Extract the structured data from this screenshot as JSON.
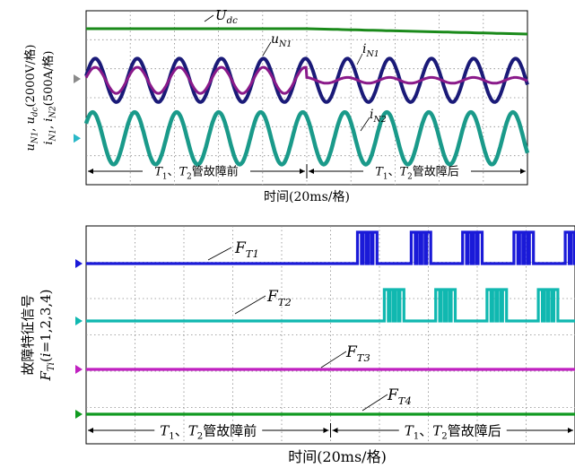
{
  "chart_data": [
    {
      "type": "line",
      "ylabel_parts": [
        "u",
        "N1",
        ", u",
        "dc",
        "(2000V/格)",
        "i",
        "N1",
        ", i",
        "N2",
        "(500A/格)"
      ],
      "xlabel": "时间(20ms/格)",
      "x_divisions": 10,
      "y_divisions": 6,
      "grid": true,
      "phase_split_division": 5,
      "annotations": [
        {
          "main": "U",
          "sub": "dc"
        },
        {
          "main": "u",
          "sub": "N1"
        },
        {
          "main": "i",
          "sub": "N1"
        },
        {
          "main": "i",
          "sub": "N2"
        }
      ],
      "phases": [
        {
          "pre": "T",
          "pre_sub": "1",
          "mid": "、T",
          "mid_sub": "2",
          "post": "管故障前"
        },
        {
          "pre": "T",
          "pre_sub": "1",
          "mid": "、T",
          "mid_sub": "2",
          "post": "管故障后"
        }
      ],
      "colors": {
        "udc": "#1a8a1a",
        "uN1": "#1a1a78",
        "iN1": "#8a1a8a",
        "iN2": "#1a9a8a",
        "marker1": "#8a8a8a",
        "marker2": "#2ab8c8"
      },
      "series": [
        {
          "key": "udc",
          "values_before": [
            1.5,
            1.5
          ],
          "values_after": [
            1.5,
            1.2
          ]
        },
        {
          "key": "uN1",
          "cycles": 10.5,
          "amplitude_div": 0.75,
          "center_div": 2.4
        },
        {
          "key": "iN1",
          "cycles": 10.5,
          "amplitude_div_before": 0.45,
          "amplitude_div_after": 0.1,
          "center_div": 2.4
        },
        {
          "key": "iN2",
          "cycles": 10.5,
          "amplitude_div": 0.9,
          "center_div": 4.4
        }
      ]
    },
    {
      "type": "line",
      "ylabel": "故障特征信号",
      "ylabel_parts": [
        "F",
        "Ti",
        "(i=1,2,3,4)"
      ],
      "xlabel": "时间(20ms/格)",
      "x_divisions": 10,
      "y_divisions": 6,
      "grid": true,
      "phase_split_division": 5,
      "annotations": [
        {
          "main": "F",
          "sub": "T1"
        },
        {
          "main": "F",
          "sub": "T2"
        },
        {
          "main": "F",
          "sub": "T3"
        },
        {
          "main": "F",
          "sub": "T4"
        }
      ],
      "phases": [
        {
          "pre": "T",
          "pre_sub": "1",
          "mid": "、T",
          "mid_sub": "2",
          "post": "管故障前"
        },
        {
          "pre": "T",
          "pre_sub": "1",
          "mid": "、T",
          "mid_sub": "2",
          "post": "管故障后"
        }
      ],
      "colors": {
        "FT1": "#1a1ad8",
        "FT2": "#10b8b0",
        "FT3": "#c020c0",
        "FT4": "#109a20"
      },
      "series": [
        {
          "key": "FT1",
          "pulse_starts_div": [
            5.55,
            6.65,
            7.7,
            8.75,
            9.8
          ],
          "pulse_width_div": 0.4
        },
        {
          "key": "FT2",
          "pulse_starts_div": [
            6.1,
            7.15,
            8.2,
            9.25
          ],
          "pulse_width_div": 0.4
        },
        {
          "key": "FT3",
          "pulse_starts_div": []
        },
        {
          "key": "FT4",
          "pulse_starts_div": []
        }
      ]
    }
  ]
}
